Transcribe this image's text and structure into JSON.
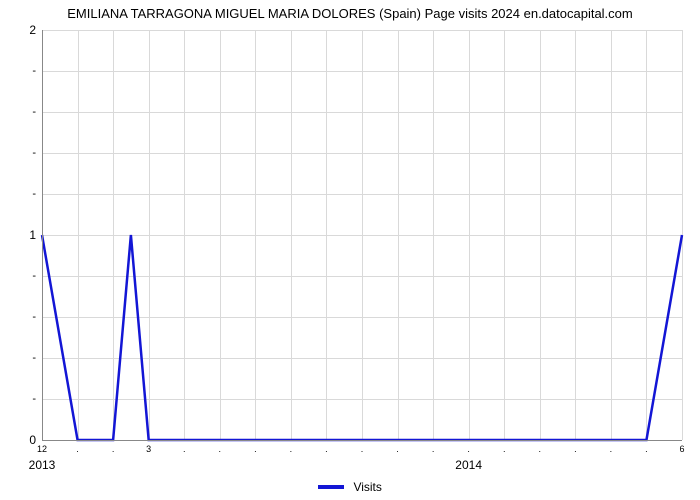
{
  "title": "EMILIANA TARRAGONA MIGUEL MARIA DOLORES (Spain) Page visits 2024 en.datocapital.com",
  "chart": {
    "type": "line",
    "background_color": "#ffffff",
    "grid_color": "#d9d9d9",
    "axis_color": "#888888",
    "series": {
      "label": "Visits",
      "color": "#1316d5",
      "line_width": 2.5,
      "x": [
        0,
        1,
        2,
        2.5,
        3,
        4,
        5,
        6,
        7,
        8,
        9,
        10,
        11,
        12,
        13,
        14,
        15,
        16,
        17,
        18
      ],
      "y": [
        1,
        0,
        0,
        1,
        0,
        0,
        0,
        0,
        0,
        0,
        0,
        0,
        0,
        0,
        0,
        0,
        0,
        0,
        0,
        1
      ]
    },
    "xlim": [
      0,
      18
    ],
    "ylim": [
      0,
      2
    ],
    "x_major_ticks": [
      {
        "pos": 0,
        "label": "2013"
      },
      {
        "pos": 12,
        "label": "2014"
      }
    ],
    "x_minor_ticks": [
      {
        "pos": 0,
        "label": "12"
      },
      {
        "pos": 1,
        "label": "."
      },
      {
        "pos": 2,
        "label": "."
      },
      {
        "pos": 3,
        "label": "3"
      },
      {
        "pos": 4,
        "label": "."
      },
      {
        "pos": 5,
        "label": "."
      },
      {
        "pos": 6,
        "label": "."
      },
      {
        "pos": 7,
        "label": "."
      },
      {
        "pos": 8,
        "label": "."
      },
      {
        "pos": 9,
        "label": "."
      },
      {
        "pos": 10,
        "label": "."
      },
      {
        "pos": 11,
        "label": "."
      },
      {
        "pos": 12,
        "label": "."
      },
      {
        "pos": 13,
        "label": "."
      },
      {
        "pos": 14,
        "label": "."
      },
      {
        "pos": 15,
        "label": "."
      },
      {
        "pos": 16,
        "label": "."
      },
      {
        "pos": 17,
        "label": "."
      },
      {
        "pos": 18,
        "label": "6"
      }
    ],
    "y_major_ticks": [
      {
        "pos": 0,
        "label": "0"
      },
      {
        "pos": 1,
        "label": "1"
      },
      {
        "pos": 2,
        "label": "2"
      }
    ],
    "y_minor_ticks": [
      {
        "pos": 0.2,
        "label": "-"
      },
      {
        "pos": 0.4,
        "label": "-"
      },
      {
        "pos": 0.6,
        "label": "-"
      },
      {
        "pos": 0.8,
        "label": "-"
      },
      {
        "pos": 1.2,
        "label": "-"
      },
      {
        "pos": 1.4,
        "label": "-"
      },
      {
        "pos": 1.6,
        "label": "-"
      },
      {
        "pos": 1.8,
        "label": "-"
      }
    ],
    "x_grid_positions": [
      0,
      1,
      2,
      3,
      4,
      5,
      6,
      7,
      8,
      9,
      10,
      11,
      12,
      13,
      14,
      15,
      16,
      17,
      18
    ],
    "y_grid_positions": [
      0,
      0.2,
      0.4,
      0.6,
      0.8,
      1,
      1.2,
      1.4,
      1.6,
      1.8,
      2
    ],
    "title_fontsize": 13,
    "tick_fontsize": 12,
    "legend_fontsize": 12
  },
  "legend": {
    "swatch_color": "#1316d5",
    "label": "Visits"
  }
}
